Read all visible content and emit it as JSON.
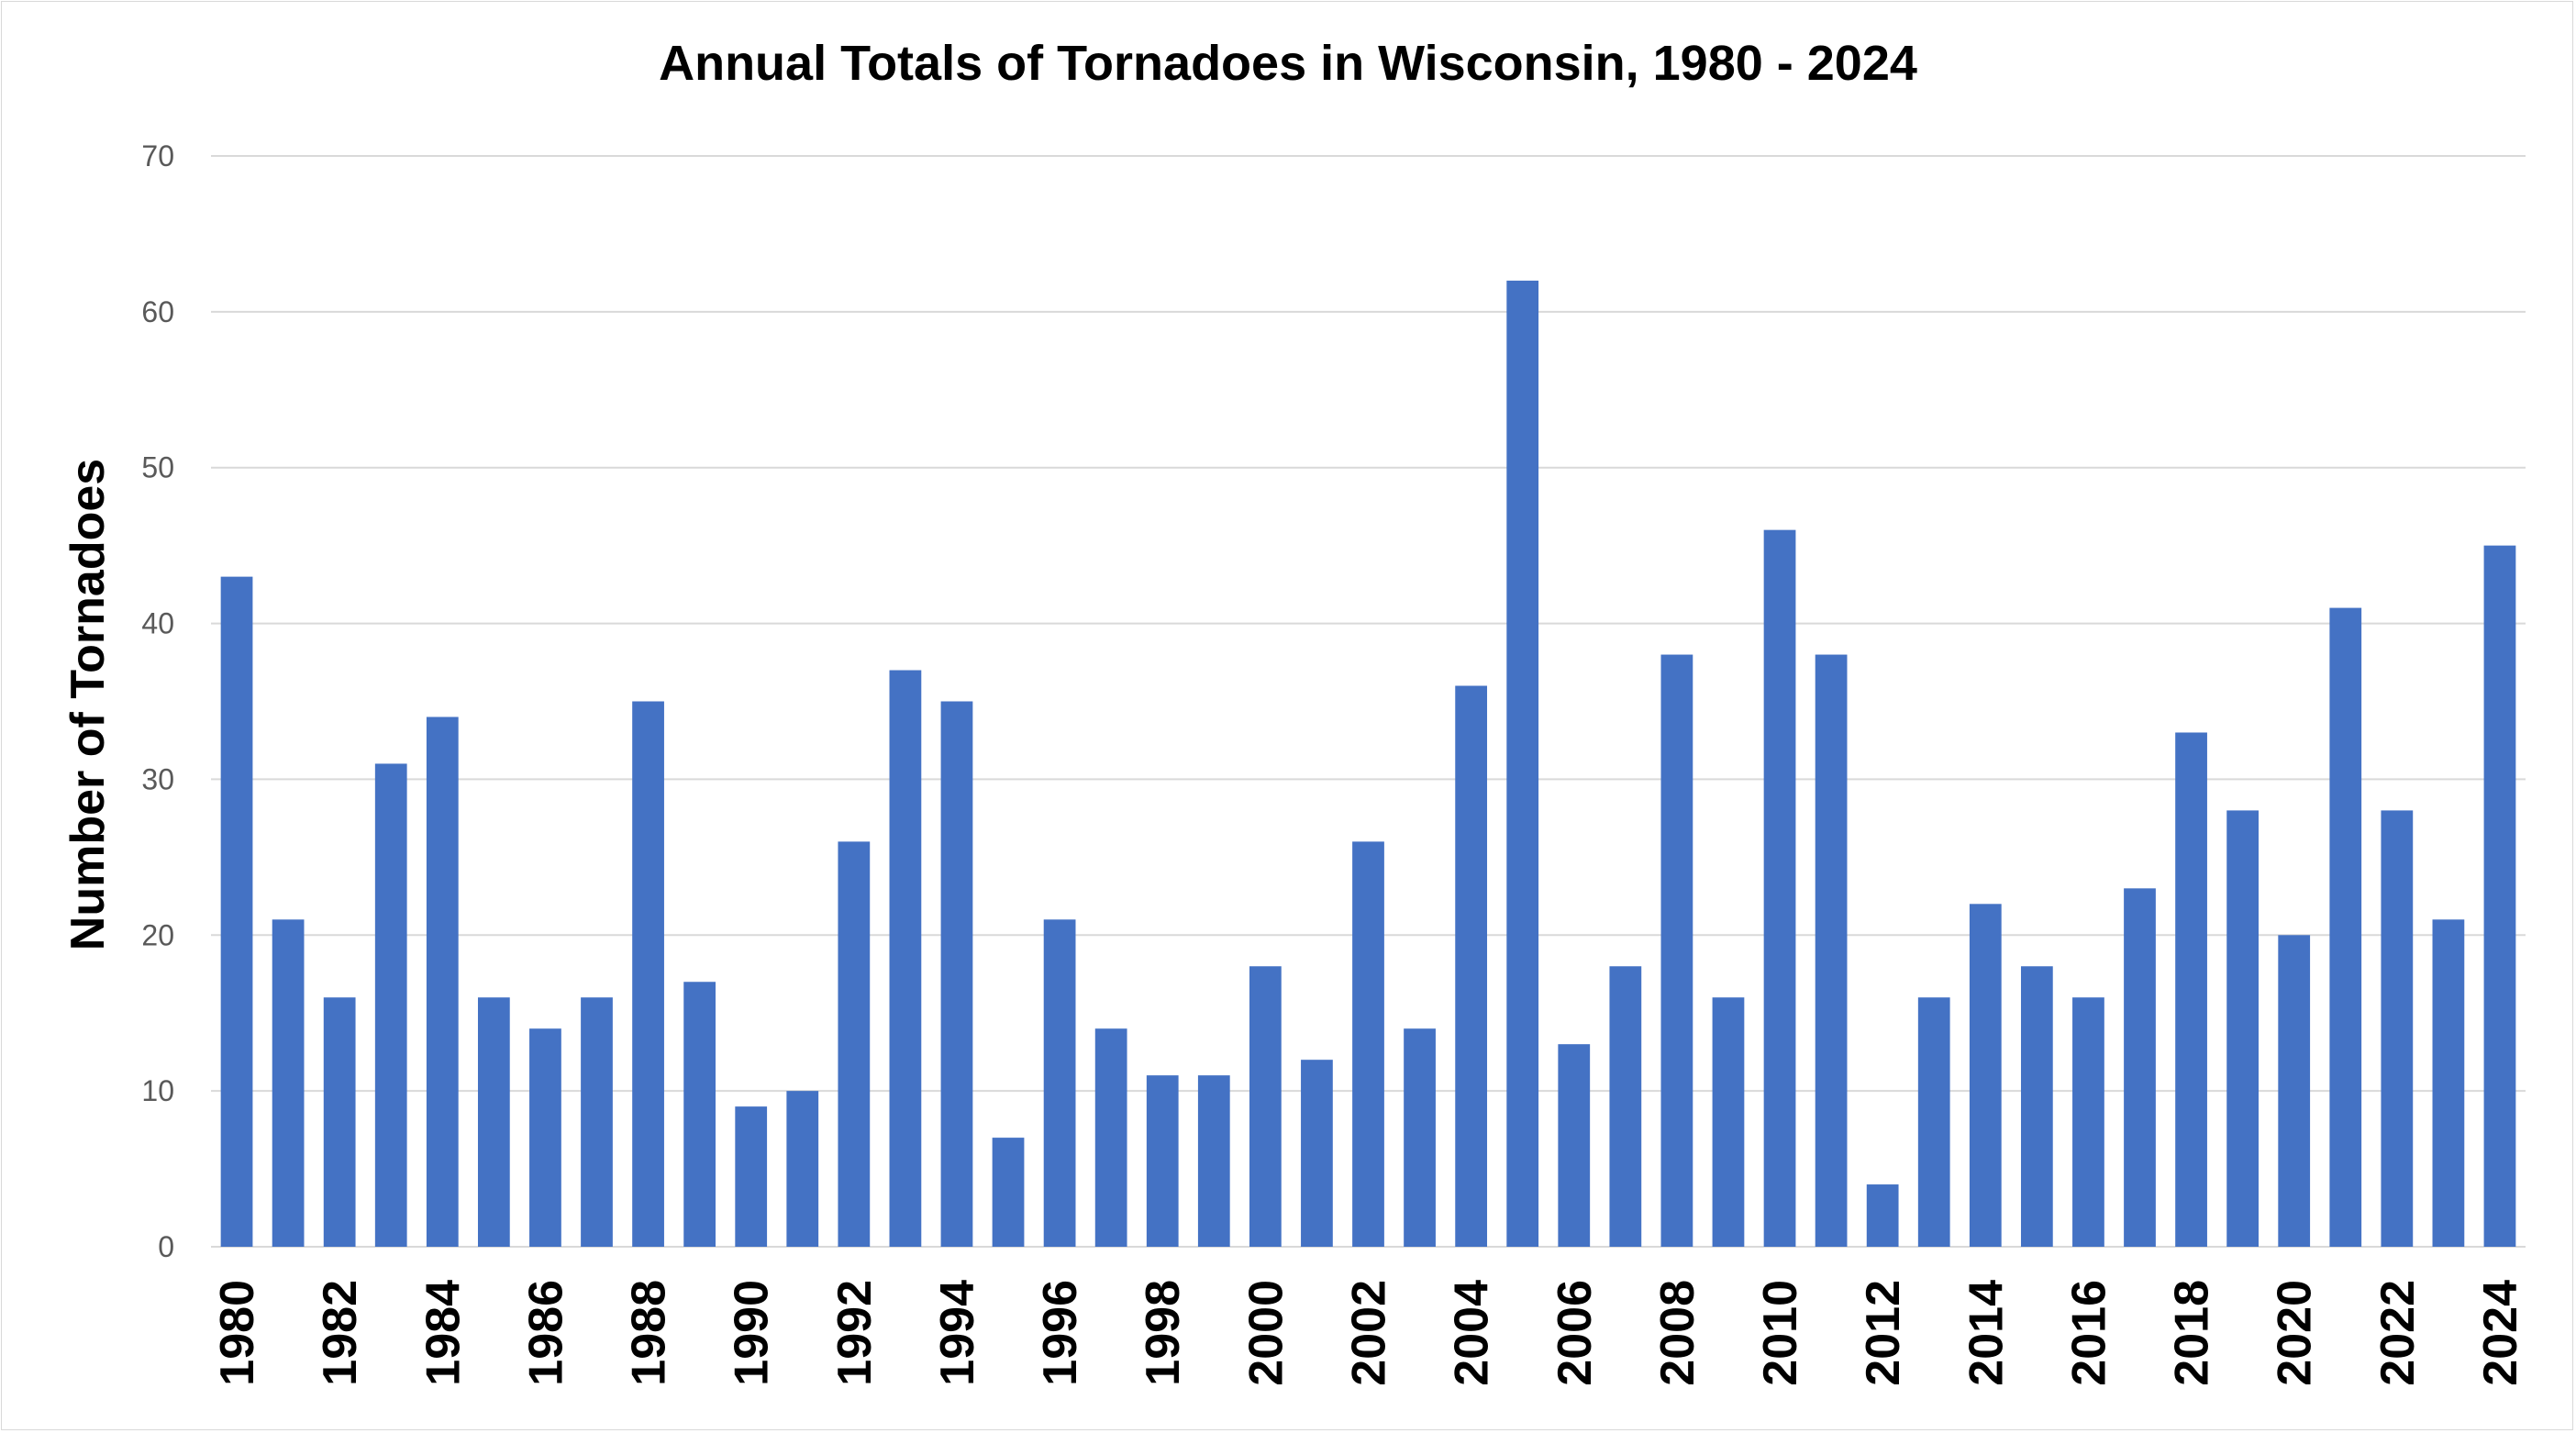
{
  "chart_data": {
    "type": "bar",
    "title": "Annual Totals of Tornadoes in Wisconsin, 1980 - 2024",
    "xlabel": "",
    "ylabel": "Number of Tornadoes",
    "ylim": [
      0,
      70
    ],
    "yticks": [
      0,
      10,
      20,
      30,
      40,
      50,
      60,
      70
    ],
    "grid": true,
    "bar_color": "#4472C4",
    "categories": [
      "1980",
      "1981",
      "1982",
      "1983",
      "1984",
      "1985",
      "1986",
      "1987",
      "1988",
      "1989",
      "1990",
      "1991",
      "1992",
      "1993",
      "1994",
      "1995",
      "1996",
      "1997",
      "1998",
      "1999",
      "2000",
      "2001",
      "2002",
      "2003",
      "2004",
      "2005",
      "2006",
      "2007",
      "2008",
      "2009",
      "2010",
      "2011",
      "2012",
      "2013",
      "2014",
      "2015",
      "2016",
      "2017",
      "2018",
      "2019",
      "2020",
      "2021",
      "2022",
      "2023",
      "2024"
    ],
    "tick_labels": [
      "1980",
      "1982",
      "1984",
      "1986",
      "1988",
      "1990",
      "1992",
      "1994",
      "1996",
      "1998",
      "2000",
      "2002",
      "2004",
      "2006",
      "2008",
      "2010",
      "2012",
      "2014",
      "2016",
      "2018",
      "2020",
      "2022",
      "2024"
    ],
    "values": [
      43,
      21,
      16,
      31,
      34,
      16,
      14,
      16,
      35,
      17,
      9,
      10,
      26,
      37,
      35,
      7,
      21,
      14,
      11,
      11,
      18,
      12,
      26,
      14,
      36,
      62,
      13,
      18,
      38,
      16,
      46,
      38,
      4,
      16,
      22,
      18,
      16,
      23,
      33,
      28,
      20,
      41,
      28,
      21,
      45
    ]
  }
}
